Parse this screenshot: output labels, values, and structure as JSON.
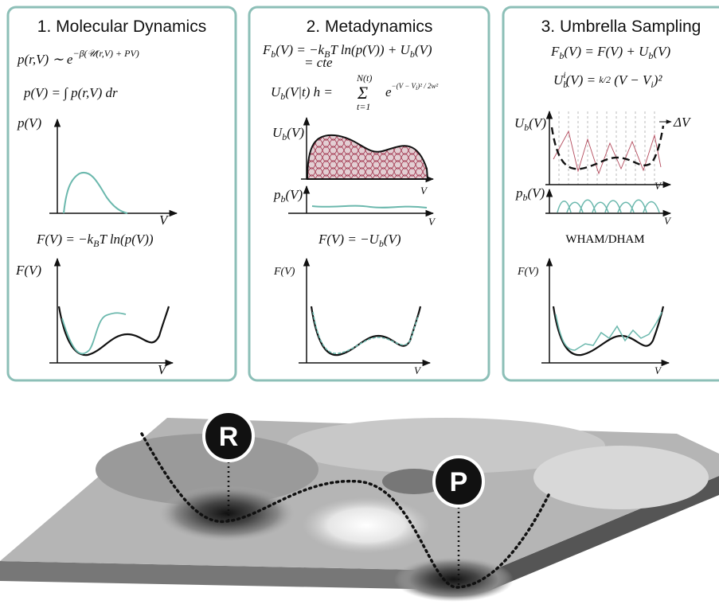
{
  "panels": [
    {
      "title": "1. Molecular Dynamics",
      "equations": [
        [
          "p(r,V) ∼  e",
          "−β(𝒰(r,V) + PV)"
        ],
        [
          "p(V) = ∫ p(r,V)  dr"
        ],
        [
          "F(V) = −k",
          "B",
          "T ln(p(V))"
        ]
      ],
      "axis_labels": [
        "p(V)",
        "V",
        "F(V)",
        "V"
      ]
    },
    {
      "title": "2. Metadynamics",
      "equations": [
        [
          "F",
          "b",
          "(V) = −k",
          "B",
          "T ln(p(V)) + U",
          "b",
          "(V)"
        ],
        [
          "= cte"
        ],
        [
          "U",
          "b",
          "(V|t) h = ",
          "N(t)",
          "Σ",
          "t=1",
          " e",
          "−(V − V",
          "i",
          ")² / 2w²"
        ],
        [
          "F(V) = −U",
          "b",
          "(V)"
        ]
      ],
      "axis_labels": [
        [
          "U",
          "b",
          "(V)"
        ],
        "V",
        [
          "p",
          "b",
          "(V)"
        ],
        "V",
        "F(V)",
        "V"
      ]
    },
    {
      "title": "3. Umbrella Sampling",
      "equations": [
        [
          "F",
          "b",
          "(V) = F(V) + U",
          "b",
          "(V)"
        ],
        [
          "U",
          "b",
          "i",
          "(V) = ",
          "k/2",
          " (V − V",
          "i",
          ")²"
        ],
        [
          "WHAM/DHAM"
        ]
      ],
      "axis_labels": [
        [
          "U",
          "b",
          "(V)"
        ],
        "ΔV",
        "V",
        [
          "p",
          "b",
          "(V)"
        ],
        "V",
        "F(V)",
        "V"
      ]
    }
  ],
  "states": [
    "R",
    "P"
  ]
}
